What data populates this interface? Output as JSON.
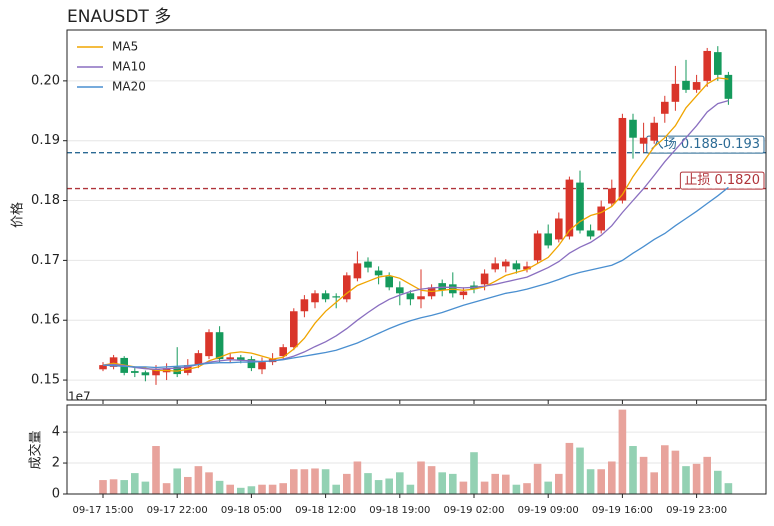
{
  "chart_data": [
    {
      "type": "candlestick",
      "title": "ENAUSDT 多",
      "ylabel": "价格",
      "up_color": "#d9352a",
      "down_color": "#159a5c",
      "open": [
        0.1518,
        0.1522,
        0.1537,
        0.1515,
        0.1513,
        0.1508,
        0.1513,
        0.1522,
        0.1512,
        0.1525,
        0.154,
        0.158,
        0.1535,
        0.1538,
        0.1535,
        0.1518,
        0.153,
        0.154,
        0.1555,
        0.1615,
        0.163,
        0.1645,
        0.164,
        0.1635,
        0.167,
        0.1698,
        0.1683,
        0.1673,
        0.1655,
        0.1645,
        0.1635,
        0.164,
        0.1662,
        0.166,
        0.1642,
        0.1658,
        0.166,
        0.1685,
        0.169,
        0.1695,
        0.1685,
        0.17,
        0.1745,
        0.1735,
        0.174,
        0.183,
        0.175,
        0.175,
        0.1795,
        0.18,
        0.1935,
        0.1895,
        0.19,
        0.1945,
        0.1965,
        0.2,
        0.1985,
        0.2,
        0.2048,
        0.201
      ],
      "high": [
        0.153,
        0.1542,
        0.154,
        0.152,
        0.1516,
        0.1525,
        0.1528,
        0.1555,
        0.1535,
        0.155,
        0.1585,
        0.159,
        0.1545,
        0.1542,
        0.154,
        0.1538,
        0.1545,
        0.156,
        0.162,
        0.1642,
        0.165,
        0.165,
        0.1645,
        0.168,
        0.1715,
        0.1705,
        0.169,
        0.168,
        0.1665,
        0.165,
        0.1685,
        0.166,
        0.1668,
        0.168,
        0.1655,
        0.1665,
        0.1685,
        0.1705,
        0.1702,
        0.17,
        0.1698,
        0.175,
        0.176,
        0.178,
        0.184,
        0.185,
        0.176,
        0.18,
        0.1835,
        0.1945,
        0.1945,
        0.193,
        0.194,
        0.1975,
        0.2025,
        0.2035,
        0.201,
        0.2055,
        0.2058,
        0.2015
      ],
      "low": [
        0.1515,
        0.1518,
        0.1508,
        0.1505,
        0.1498,
        0.1492,
        0.15,
        0.1505,
        0.1508,
        0.152,
        0.1535,
        0.153,
        0.153,
        0.1528,
        0.1515,
        0.151,
        0.1525,
        0.1535,
        0.155,
        0.1605,
        0.162,
        0.163,
        0.162,
        0.163,
        0.1665,
        0.168,
        0.166,
        0.165,
        0.1625,
        0.1625,
        0.162,
        0.1635,
        0.164,
        0.1638,
        0.1635,
        0.1645,
        0.165,
        0.168,
        0.168,
        0.1678,
        0.168,
        0.1695,
        0.172,
        0.173,
        0.1735,
        0.1745,
        0.1735,
        0.1745,
        0.179,
        0.1795,
        0.187,
        0.188,
        0.1895,
        0.193,
        0.195,
        0.198,
        0.198,
        0.199,
        0.2,
        0.196
      ],
      "close": [
        0.1525,
        0.1538,
        0.1512,
        0.1512,
        0.1508,
        0.1518,
        0.152,
        0.151,
        0.1525,
        0.1545,
        0.158,
        0.1535,
        0.1538,
        0.1533,
        0.152,
        0.153,
        0.1535,
        0.1555,
        0.1615,
        0.1635,
        0.1645,
        0.1635,
        0.1638,
        0.1675,
        0.1695,
        0.1688,
        0.1675,
        0.1655,
        0.1645,
        0.1635,
        0.164,
        0.1655,
        0.165,
        0.1645,
        0.1648,
        0.1652,
        0.1678,
        0.1695,
        0.1698,
        0.1685,
        0.169,
        0.1745,
        0.1725,
        0.177,
        0.1835,
        0.175,
        0.174,
        0.179,
        0.182,
        0.1938,
        0.1905,
        0.1905,
        0.193,
        0.1965,
        0.1995,
        0.1985,
        0.1998,
        0.205,
        0.201,
        0.197
      ],
      "series": [
        {
          "name": "MA5",
          "color": "#f0a500",
          "values": [
            0.1525,
            0.1528,
            0.1525,
            0.1522,
            0.152,
            0.1516,
            0.1516,
            0.1515,
            0.1518,
            0.1522,
            0.1532,
            0.1538,
            0.1545,
            0.1547,
            0.1545,
            0.154,
            0.1535,
            0.1538,
            0.1552,
            0.157,
            0.1595,
            0.1615,
            0.163,
            0.1645,
            0.1658,
            0.1665,
            0.1672,
            0.1675,
            0.167,
            0.166,
            0.165,
            0.1648,
            0.165,
            0.1652,
            0.165,
            0.1652,
            0.1656,
            0.1665,
            0.1675,
            0.168,
            0.1685,
            0.1695,
            0.1705,
            0.1725,
            0.175,
            0.1765,
            0.1775,
            0.178,
            0.179,
            0.181,
            0.184,
            0.1865,
            0.189,
            0.1905,
            0.1925,
            0.1955,
            0.1975,
            0.1995,
            0.2005,
            0.2003
          ]
        },
        {
          "name": "MA10",
          "color": "#8a6fc0",
          "values": [
            0.1525,
            0.1526,
            0.1524,
            0.1521,
            0.1519,
            0.1518,
            0.1519,
            0.152,
            0.1522,
            0.1526,
            0.153,
            0.1532,
            0.1534,
            0.1533,
            0.1532,
            0.1531,
            0.1532,
            0.1535,
            0.154,
            0.1547,
            0.1556,
            0.1564,
            0.1574,
            0.1586,
            0.16,
            0.1613,
            0.1625,
            0.1635,
            0.1642,
            0.1648,
            0.1652,
            0.1654,
            0.1655,
            0.1655,
            0.1654,
            0.1655,
            0.1657,
            0.166,
            0.1664,
            0.1668,
            0.1672,
            0.168,
            0.1688,
            0.1698,
            0.1712,
            0.1722,
            0.173,
            0.1742,
            0.1758,
            0.178,
            0.18,
            0.182,
            0.1842,
            0.1865,
            0.1885,
            0.1905,
            0.1925,
            0.1948,
            0.1962,
            0.1967
          ]
        },
        {
          "name": "MA20",
          "color": "#4a8fd0",
          "values": [
            0.1525,
            0.1524,
            0.1523,
            0.1522,
            0.1522,
            0.1521,
            0.1522,
            0.1523,
            0.1524,
            0.1526,
            0.1528,
            0.1529,
            0.1529,
            0.153,
            0.153,
            0.1531,
            0.1532,
            0.1534,
            0.1537,
            0.154,
            0.1543,
            0.1546,
            0.155,
            0.1556,
            0.1562,
            0.157,
            0.1578,
            0.1586,
            0.1593,
            0.1599,
            0.1604,
            0.1608,
            0.1613,
            0.1619,
            0.1625,
            0.163,
            0.1635,
            0.164,
            0.1645,
            0.1648,
            0.1652,
            0.1657,
            0.1662,
            0.1668,
            0.1675,
            0.168,
            0.1684,
            0.1688,
            0.1692,
            0.17,
            0.1712,
            0.1723,
            0.1735,
            0.1745,
            0.1758,
            0.177,
            0.1782,
            0.1795,
            0.1808,
            0.1822
          ]
        }
      ],
      "hlines": [
        {
          "value": 0.188,
          "color": "#2b6a94",
          "label": "入场 0.188-0.193"
        },
        {
          "value": 0.182,
          "color": "#b0343a",
          "label": "止损 0.1820"
        }
      ],
      "ylim": [
        0.14667,
        0.2085
      ],
      "yticks": [
        0.15,
        0.16,
        0.17,
        0.18,
        0.19,
        {
          "value": 0.2,
          "label": "0.20"
        }
      ],
      "grid": true,
      "legend": "upper left"
    },
    {
      "type": "bar",
      "ylabel": "成交量",
      "offset_label": "1e7",
      "up_color": "#e8a39c",
      "down_color": "#93d1b3",
      "categories": [
        "09-17 15:00",
        null,
        null,
        null,
        null,
        null,
        null,
        "09-17 22:00",
        null,
        null,
        null,
        null,
        null,
        null,
        "09-18 05:00",
        null,
        null,
        null,
        null,
        null,
        null,
        "09-18 12:00",
        null,
        null,
        null,
        null,
        null,
        null,
        "09-18 19:00",
        null,
        null,
        null,
        null,
        null,
        null,
        "09-19 02:00",
        null,
        null,
        null,
        null,
        null,
        null,
        "09-19 09:00",
        null,
        null,
        null,
        null,
        null,
        null,
        "09-19 16:00",
        null,
        null,
        null,
        null,
        null,
        null,
        "09-19 23:00",
        null,
        null,
        null
      ],
      "values": [
        0.9,
        0.95,
        0.9,
        1.35,
        0.8,
        3.1,
        0.7,
        1.65,
        1.1,
        1.8,
        1.4,
        0.85,
        0.6,
        0.4,
        0.5,
        0.6,
        0.6,
        0.7,
        1.6,
        1.6,
        1.65,
        1.6,
        0.6,
        1.3,
        2.1,
        1.35,
        0.9,
        1.0,
        1.4,
        0.6,
        2.1,
        1.8,
        1.4,
        1.3,
        0.8,
        2.7,
        0.8,
        1.3,
        1.25,
        0.6,
        0.7,
        1.95,
        0.8,
        1.3,
        3.3,
        3.0,
        1.6,
        1.6,
        2.1,
        5.45,
        3.1,
        2.4,
        1.4,
        3.15,
        2.8,
        1.8,
        1.95,
        2.4,
        1.5,
        0.7
      ],
      "ylim": [
        0,
        5.75
      ],
      "yticks": [
        0,
        2,
        4
      ],
      "grid": true
    }
  ]
}
